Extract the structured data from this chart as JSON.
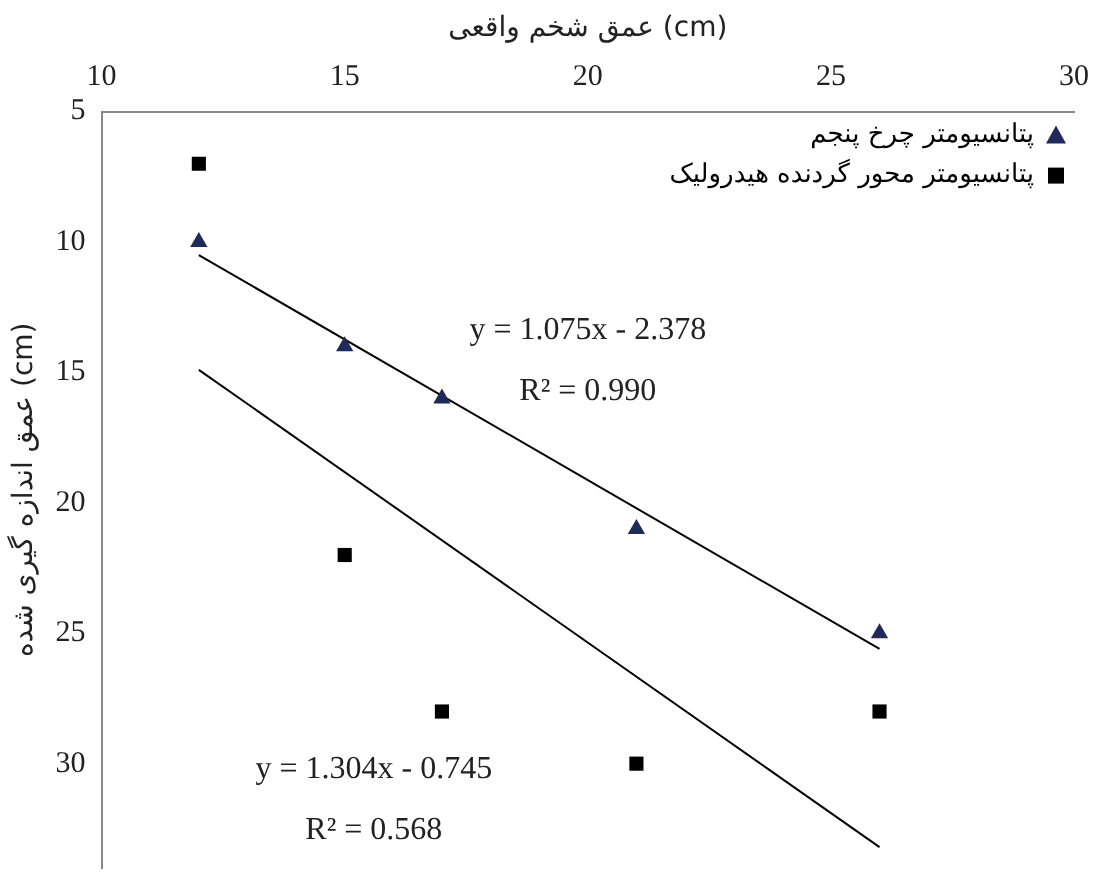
{
  "chart_data": {
    "type": "scatter",
    "xlabel": "عمق شخم واقعی (cm)",
    "ylabel": "عمق اندازه گیری شده (cm)",
    "xlim": [
      10,
      30
    ],
    "xticks": [
      10,
      15,
      20,
      25,
      30
    ],
    "ylim": [
      34,
      5
    ],
    "yticks": [
      5,
      10,
      15,
      20,
      25,
      30
    ],
    "grid": false,
    "legend": "top right",
    "series": [
      {
        "name": "پتانسیومتر چرخ پنجم",
        "type": "scatter",
        "marker": "triangle",
        "color": "#1f2a5a",
        "x": [
          12,
          15,
          17,
          21,
          26
        ],
        "values": [
          10,
          14,
          16,
          21,
          25
        ]
      },
      {
        "name": "پتانسیومتر محور گردنده هیدرولیک",
        "type": "scatter",
        "marker": "square",
        "color": "#000000",
        "x": [
          12,
          15,
          17,
          21,
          26
        ],
        "values": [
          7,
          22,
          28,
          30,
          28
        ]
      },
      {
        "type": "line",
        "marker": "none",
        "line_style": "solid",
        "color": "#000000",
        "x": [
          12,
          26
        ],
        "values": [
          10.5,
          25.6
        ]
      },
      {
        "type": "line",
        "marker": "none",
        "line_style": "solid",
        "color": "#000000",
        "x": [
          12,
          26
        ],
        "values": [
          14.9,
          33.2
        ]
      }
    ],
    "annotations": [
      "y = 1.075x - 2.378",
      "R² = 0.990",
      "y = 1.304x - 0.745",
      "R² = 0.568"
    ]
  }
}
